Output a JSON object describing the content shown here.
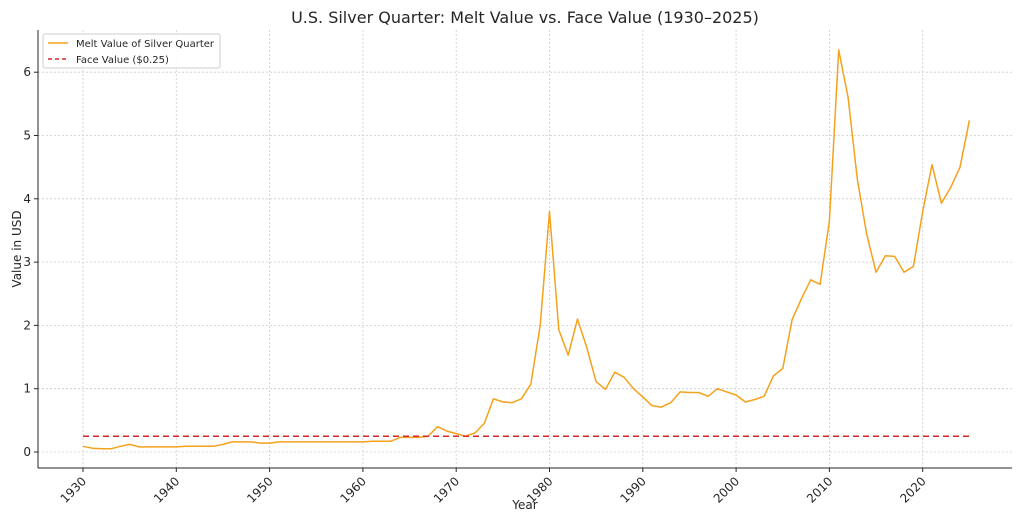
{
  "chart_data": {
    "type": "line",
    "title": "U.S. Silver Quarter: Melt Value vs. Face Value (1930–2025)",
    "xlabel": "Year",
    "ylabel": "Value in USD",
    "xlim": [
      1925,
      2030
    ],
    "ylim": [
      -0.25,
      6.65
    ],
    "xticks": [
      1930,
      1940,
      1950,
      1960,
      1970,
      1980,
      1990,
      2000,
      2010,
      2020
    ],
    "yticks": [
      0,
      1,
      2,
      3,
      4,
      5,
      6
    ],
    "grid": true,
    "legend_position": "top-left",
    "series": [
      {
        "name": "Melt Value of Silver Quarter",
        "color": "#f5a11c",
        "style": "solid",
        "x": [
          1930,
          1931,
          1932,
          1933,
          1934,
          1935,
          1936,
          1937,
          1938,
          1939,
          1940,
          1941,
          1942,
          1943,
          1944,
          1945,
          1946,
          1947,
          1948,
          1949,
          1950,
          1951,
          1952,
          1953,
          1954,
          1955,
          1956,
          1957,
          1958,
          1959,
          1960,
          1961,
          1962,
          1963,
          1964,
          1965,
          1966,
          1967,
          1968,
          1969,
          1970,
          1971,
          1972,
          1973,
          1974,
          1975,
          1976,
          1977,
          1978,
          1979,
          1980,
          1981,
          1982,
          1983,
          1984,
          1985,
          1986,
          1987,
          1988,
          1989,
          1990,
          1991,
          1992,
          1993,
          1994,
          1995,
          1996,
          1997,
          1998,
          1999,
          2000,
          2001,
          2002,
          2003,
          2004,
          2005,
          2006,
          2007,
          2008,
          2009,
          2010,
          2011,
          2012,
          2013,
          2014,
          2015,
          2016,
          2017,
          2018,
          2019,
          2020,
          2021,
          2022,
          2023,
          2024,
          2025
        ],
        "values": [
          0.09,
          0.06,
          0.05,
          0.05,
          0.09,
          0.12,
          0.08,
          0.08,
          0.08,
          0.08,
          0.08,
          0.09,
          0.09,
          0.09,
          0.09,
          0.12,
          0.16,
          0.16,
          0.16,
          0.14,
          0.14,
          0.16,
          0.16,
          0.16,
          0.16,
          0.16,
          0.16,
          0.16,
          0.16,
          0.16,
          0.16,
          0.17,
          0.17,
          0.17,
          0.23,
          0.23,
          0.23,
          0.25,
          0.4,
          0.33,
          0.29,
          0.25,
          0.3,
          0.45,
          0.84,
          0.79,
          0.78,
          0.84,
          1.07,
          2.0,
          3.8,
          1.93,
          1.53,
          2.1,
          1.65,
          1.11,
          0.99,
          1.26,
          1.18,
          1.0,
          0.87,
          0.73,
          0.71,
          0.78,
          0.95,
          0.94,
          0.94,
          0.88,
          1.0,
          0.95,
          0.9,
          0.79,
          0.83,
          0.88,
          1.2,
          1.32,
          2.09,
          2.42,
          2.72,
          2.65,
          3.65,
          6.35,
          5.6,
          4.3,
          3.44,
          2.84,
          3.1,
          3.09,
          2.84,
          2.93,
          3.8,
          4.54,
          3.93,
          4.18,
          4.5,
          5.24
        ]
      },
      {
        "name": "Face Value ($0.25)",
        "color": "#d62728",
        "style": "dashed",
        "x": [
          1930,
          2025
        ],
        "values": [
          0.25,
          0.25
        ]
      }
    ]
  }
}
